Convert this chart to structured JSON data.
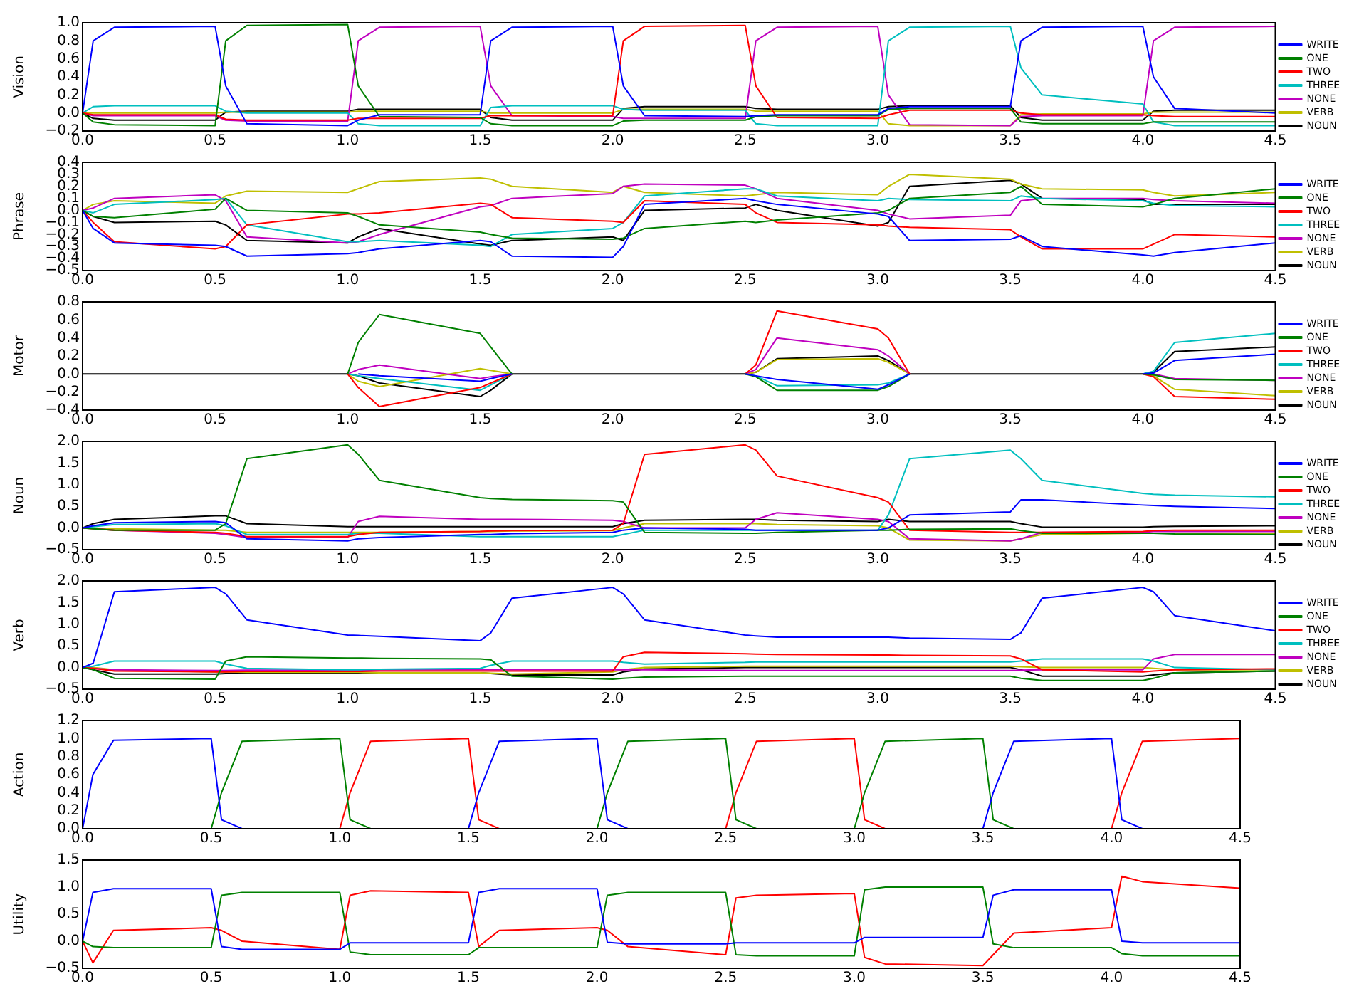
{
  "chart_data": [
    {
      "type": "line",
      "ylabel": "Vision",
      "legend": "right",
      "grid": false,
      "marker": "none",
      "xlim": [
        0,
        4.5
      ],
      "xticks": [
        {
          "value": 0,
          "label": "0.0"
        },
        {
          "value": 0.5,
          "label": "0.5"
        },
        {
          "value": 1,
          "label": "1.0"
        },
        {
          "value": 1.5,
          "label": "1.5"
        },
        {
          "value": 2,
          "label": "2.0"
        },
        {
          "value": 2.5,
          "label": "2.5"
        },
        {
          "value": 3,
          "label": "3.0"
        },
        {
          "value": 3.5,
          "label": "3.5"
        },
        {
          "value": 4,
          "label": "4.0"
        },
        {
          "value": 4.5,
          "label": "4.5"
        }
      ],
      "ylim": [
        -0.2,
        1.0
      ],
      "yticks": [
        {
          "value": -0.2,
          "label": "−0.2"
        },
        {
          "value": 0,
          "label": "0.0"
        },
        {
          "value": 0.2,
          "label": "0.2"
        },
        {
          "value": 0.4,
          "label": "0.4"
        },
        {
          "value": 0.6,
          "label": "0.6"
        },
        {
          "value": 0.8,
          "label": "0.8"
        },
        {
          "value": 1,
          "label": "1.0"
        }
      ],
      "x": [
        0,
        0.04,
        0.12,
        0.5,
        0.54,
        0.62,
        1,
        1.04,
        1.12,
        1.5,
        1.54,
        1.62,
        2,
        2.04,
        2.12,
        2.5,
        2.54,
        2.62,
        3,
        3.04,
        3.12,
        3.5,
        3.54,
        3.62,
        4,
        4.04,
        4.12,
        4.5
      ],
      "series": [
        {
          "name": "WRITE",
          "color": "#0000ff",
          "values": [
            0,
            0.8,
            0.95,
            0.96,
            0.3,
            -0.12,
            -0.14,
            -0.08,
            -0.02,
            -0.02,
            0.8,
            0.95,
            0.96,
            0.3,
            -0.03,
            -0.04,
            -0.03,
            -0.02,
            -0.02,
            0.05,
            0.07,
            0.07,
            0.8,
            0.95,
            0.96,
            0.4,
            0.05,
            0.0
          ]
        },
        {
          "name": "ONE",
          "color": "#008000",
          "values": [
            0,
            -0.1,
            -0.13,
            -0.14,
            0.8,
            0.97,
            0.98,
            0.3,
            -0.04,
            -0.05,
            -0.12,
            -0.14,
            -0.14,
            -0.09,
            -0.08,
            -0.08,
            -0.04,
            -0.03,
            -0.03,
            0.04,
            0.05,
            0.05,
            -0.1,
            -0.12,
            -0.12,
            -0.1,
            -0.1,
            -0.1
          ]
        },
        {
          "name": "TWO",
          "color": "#ff0000",
          "values": [
            0,
            -0.02,
            -0.02,
            -0.02,
            -0.07,
            -0.08,
            -0.08,
            -0.06,
            -0.06,
            -0.06,
            -0.03,
            -0.03,
            -0.03,
            0.8,
            0.96,
            0.97,
            0.3,
            -0.05,
            -0.06,
            -0.02,
            0.03,
            0.03,
            0.0,
            -0.02,
            -0.02,
            -0.03,
            -0.04,
            -0.04
          ]
        },
        {
          "name": "THREE",
          "color": "#00bfbf",
          "values": [
            0,
            0.07,
            0.08,
            0.08,
            0.02,
            0.0,
            0.0,
            -0.12,
            -0.14,
            -0.14,
            0.06,
            0.08,
            0.08,
            0.04,
            0.03,
            0.03,
            -0.12,
            -0.14,
            -0.14,
            0.8,
            0.95,
            0.96,
            0.5,
            0.2,
            0.1,
            -0.1,
            -0.14,
            -0.14
          ]
        },
        {
          "name": "NONE",
          "color": "#bf00bf",
          "values": [
            0,
            -0.03,
            -0.03,
            -0.03,
            -0.08,
            -0.09,
            -0.09,
            0.8,
            0.95,
            0.96,
            0.3,
            -0.03,
            -0.04,
            -0.06,
            -0.06,
            -0.06,
            0.8,
            0.95,
            0.96,
            0.2,
            -0.13,
            -0.14,
            -0.04,
            -0.03,
            -0.03,
            0.8,
            0.95,
            0.96
          ]
        },
        {
          "name": "VERB",
          "color": "#bfbf00",
          "values": [
            0,
            0.0,
            0.0,
            0.0,
            0.01,
            0.01,
            0.01,
            0.02,
            0.02,
            0.02,
            0.0,
            0.0,
            0.0,
            0.04,
            0.04,
            0.04,
            0.02,
            0.02,
            0.02,
            -0.12,
            -0.14,
            -0.14,
            -0.02,
            -0.01,
            -0.01,
            0.01,
            0.01,
            0.01
          ]
        },
        {
          "name": "NOUN",
          "color": "#000000",
          "values": [
            0,
            -0.06,
            -0.08,
            -0.08,
            0.01,
            0.02,
            0.02,
            0.04,
            0.04,
            0.04,
            -0.05,
            -0.08,
            -0.08,
            0.05,
            0.07,
            0.07,
            0.05,
            0.04,
            0.04,
            0.07,
            0.08,
            0.08,
            -0.05,
            -0.08,
            -0.08,
            0.02,
            0.03,
            0.03
          ]
        }
      ]
    },
    {
      "type": "line",
      "ylabel": "Phrase",
      "legend": "right",
      "grid": false,
      "marker": "none",
      "xlim": [
        0,
        4.5
      ],
      "xticks": [
        {
          "value": 0,
          "label": "0.0"
        },
        {
          "value": 0.5,
          "label": "0.5"
        },
        {
          "value": 1,
          "label": "1.0"
        },
        {
          "value": 1.5,
          "label": "1.5"
        },
        {
          "value": 2,
          "label": "2.0"
        },
        {
          "value": 2.5,
          "label": "2.5"
        },
        {
          "value": 3,
          "label": "3.0"
        },
        {
          "value": 3.5,
          "label": "3.5"
        },
        {
          "value": 4,
          "label": "4.0"
        },
        {
          "value": 4.5,
          "label": "4.5"
        }
      ],
      "ylim": [
        -0.5,
        0.4
      ],
      "yticks": [
        {
          "value": -0.5,
          "label": "−0.5"
        },
        {
          "value": -0.4,
          "label": "−0.4"
        },
        {
          "value": -0.3,
          "label": "−0.3"
        },
        {
          "value": -0.2,
          "label": "−0.2"
        },
        {
          "value": -0.1,
          "label": "−0.1"
        },
        {
          "value": 0,
          "label": "0.0"
        },
        {
          "value": 0.1,
          "label": "0.1"
        },
        {
          "value": 0.2,
          "label": "0.2"
        },
        {
          "value": 0.3,
          "label": "0.3"
        },
        {
          "value": 0.4,
          "label": "0.4"
        }
      ],
      "x": [
        0,
        0.04,
        0.12,
        0.5,
        0.54,
        0.62,
        1,
        1.04,
        1.12,
        1.5,
        1.54,
        1.62,
        2,
        2.04,
        2.12,
        2.5,
        2.54,
        2.62,
        3,
        3.04,
        3.12,
        3.5,
        3.54,
        3.62,
        4,
        4.04,
        4.12,
        4.5
      ],
      "series": [
        {
          "name": "WRITE",
          "color": "#0000ff",
          "values": [
            0,
            -0.15,
            -0.27,
            -0.29,
            -0.3,
            -0.38,
            -0.36,
            -0.35,
            -0.32,
            -0.25,
            -0.26,
            -0.38,
            -0.39,
            -0.3,
            0.05,
            0.1,
            0.08,
            0.05,
            -0.03,
            -0.05,
            -0.25,
            -0.24,
            -0.21,
            -0.3,
            -0.37,
            -0.38,
            -0.35,
            -0.27
          ]
        },
        {
          "name": "ONE",
          "color": "#008000",
          "values": [
            0,
            -0.05,
            -0.06,
            0.01,
            0.1,
            0.0,
            -0.02,
            -0.05,
            -0.12,
            -0.18,
            -0.2,
            -0.23,
            -0.24,
            -0.23,
            -0.15,
            -0.09,
            -0.1,
            -0.08,
            -0.02,
            0.0,
            0.1,
            0.15,
            0.2,
            0.05,
            0.03,
            0.05,
            0.1,
            0.18
          ]
        },
        {
          "name": "TWO",
          "color": "#ff0000",
          "values": [
            0,
            -0.1,
            -0.26,
            -0.32,
            -0.3,
            -0.12,
            -0.03,
            -0.03,
            -0.02,
            0.06,
            0.05,
            -0.06,
            -0.09,
            -0.1,
            0.08,
            0.05,
            -0.02,
            -0.1,
            -0.12,
            -0.13,
            -0.14,
            -0.16,
            -0.22,
            -0.32,
            -0.32,
            -0.28,
            -0.2,
            -0.22
          ]
        },
        {
          "name": "THREE",
          "color": "#00bfbf",
          "values": [
            0,
            -0.02,
            0.05,
            0.09,
            0.1,
            -0.12,
            -0.26,
            -0.26,
            -0.25,
            -0.29,
            -0.3,
            -0.2,
            -0.15,
            -0.1,
            0.12,
            0.18,
            0.18,
            0.12,
            0.08,
            0.1,
            0.09,
            0.08,
            0.12,
            0.1,
            0.08,
            0.06,
            0.04,
            0.03
          ]
        },
        {
          "name": "NONE",
          "color": "#bf00bf",
          "values": [
            0,
            0.02,
            0.1,
            0.13,
            0.08,
            -0.22,
            -0.27,
            -0.26,
            -0.2,
            0.03,
            0.04,
            0.1,
            0.14,
            0.2,
            0.22,
            0.21,
            0.18,
            0.1,
            0.0,
            -0.03,
            -0.07,
            -0.04,
            0.08,
            0.1,
            0.1,
            0.09,
            0.08,
            0.06
          ]
        },
        {
          "name": "VERB",
          "color": "#bfbf00",
          "values": [
            0,
            0.05,
            0.08,
            0.06,
            0.12,
            0.16,
            0.15,
            0.18,
            0.24,
            0.27,
            0.26,
            0.2,
            0.15,
            0.2,
            0.15,
            0.12,
            0.13,
            0.15,
            0.13,
            0.2,
            0.3,
            0.26,
            0.22,
            0.18,
            0.17,
            0.15,
            0.12,
            0.15
          ]
        },
        {
          "name": "NOUN",
          "color": "#000000",
          "values": [
            0,
            -0.05,
            -0.1,
            -0.09,
            -0.12,
            -0.25,
            -0.27,
            -0.22,
            -0.15,
            -0.28,
            -0.29,
            -0.25,
            -0.22,
            -0.25,
            0.0,
            0.02,
            0.05,
            0.0,
            -0.13,
            -0.1,
            0.2,
            0.25,
            0.22,
            0.1,
            0.09,
            0.05,
            0.05,
            0.05
          ]
        }
      ]
    },
    {
      "type": "line",
      "ylabel": "Motor",
      "legend": "right",
      "grid": false,
      "marker": "none",
      "xlim": [
        0,
        4.5
      ],
      "xticks": [
        {
          "value": 0,
          "label": "0.0"
        },
        {
          "value": 0.5,
          "label": "0.5"
        },
        {
          "value": 1,
          "label": "1.0"
        },
        {
          "value": 1.5,
          "label": "1.5"
        },
        {
          "value": 2,
          "label": "2.0"
        },
        {
          "value": 2.5,
          "label": "2.5"
        },
        {
          "value": 3,
          "label": "3.0"
        },
        {
          "value": 3.5,
          "label": "3.5"
        },
        {
          "value": 4,
          "label": "4.0"
        },
        {
          "value": 4.5,
          "label": "4.5"
        }
      ],
      "ylim": [
        -0.4,
        0.8
      ],
      "yticks": [
        {
          "value": -0.4,
          "label": "−0.4"
        },
        {
          "value": -0.2,
          "label": "−0.2"
        },
        {
          "value": 0,
          "label": "0.0"
        },
        {
          "value": 0.2,
          "label": "0.2"
        },
        {
          "value": 0.4,
          "label": "0.4"
        },
        {
          "value": 0.6,
          "label": "0.6"
        },
        {
          "value": 0.8,
          "label": "0.8"
        }
      ],
      "x": [
        0,
        0.04,
        0.12,
        0.5,
        0.54,
        0.62,
        1,
        1.04,
        1.12,
        1.5,
        1.54,
        1.62,
        2,
        2.04,
        2.12,
        2.5,
        2.54,
        2.62,
        3,
        3.04,
        3.12,
        3.5,
        3.54,
        3.62,
        4,
        4.04,
        4.12,
        4.5
      ],
      "series": [
        {
          "name": "WRITE",
          "color": "#0000ff",
          "values": [
            null,
            null,
            null,
            null,
            null,
            null,
            null,
            0,
            -0.02,
            -0.08,
            -0.05,
            0,
            null,
            null,
            null,
            0,
            -0.02,
            -0.06,
            -0.17,
            -0.12,
            0,
            null,
            null,
            null,
            0,
            0.01,
            0.15,
            0.22
          ]
        },
        {
          "name": "ONE",
          "color": "#008000",
          "values": [
            null,
            null,
            null,
            null,
            null,
            null,
            0,
            0.35,
            0.66,
            0.45,
            0.3,
            0,
            null,
            null,
            null,
            0,
            -0.03,
            -0.18,
            -0.18,
            -0.14,
            0,
            null,
            null,
            null,
            0,
            -0.01,
            -0.06,
            -0.07
          ]
        },
        {
          "name": "TWO",
          "color": "#ff0000",
          "values": [
            null,
            null,
            null,
            null,
            null,
            null,
            0,
            -0.15,
            -0.36,
            -0.15,
            -0.1,
            0,
            null,
            null,
            null,
            0,
            0.1,
            0.7,
            0.5,
            0.4,
            0,
            null,
            null,
            null,
            0,
            -0.03,
            -0.25,
            -0.28
          ]
        },
        {
          "name": "THREE",
          "color": "#00bfbf",
          "values": [
            null,
            null,
            null,
            null,
            null,
            null,
            0,
            -0.02,
            -0.05,
            -0.18,
            -0.12,
            0,
            null,
            null,
            null,
            0,
            -0.02,
            -0.13,
            -0.12,
            -0.1,
            0,
            null,
            null,
            null,
            0,
            0.03,
            0.35,
            0.45
          ]
        },
        {
          "name": "NONE",
          "color": "#bf00bf",
          "values": [
            null,
            null,
            null,
            null,
            null,
            null,
            0,
            0.05,
            0.1,
            -0.05,
            -0.03,
            0,
            null,
            null,
            null,
            0,
            0.05,
            0.4,
            0.27,
            0.2,
            0,
            null,
            null,
            null,
            null,
            0,
            -0.05,
            -0.07
          ]
        },
        {
          "name": "VERB",
          "color": "#bfbf00",
          "values": [
            null,
            null,
            null,
            null,
            null,
            null,
            0,
            -0.08,
            -0.14,
            0.06,
            0.04,
            0,
            null,
            null,
            null,
            0,
            0.02,
            0.16,
            0.17,
            0.13,
            0,
            null,
            null,
            null,
            0,
            -0.02,
            -0.17,
            -0.24
          ]
        },
        {
          "name": "NOUN",
          "color": "#000000",
          "values": [
            0,
            0,
            0,
            0,
            0,
            0,
            0,
            -0.02,
            -0.1,
            -0.25,
            -0.18,
            0,
            0,
            0,
            0,
            0,
            0.02,
            0.17,
            0.2,
            0.15,
            0,
            0,
            0,
            0,
            0,
            0.02,
            0.25,
            0.3
          ]
        }
      ]
    },
    {
      "type": "line",
      "ylabel": "Noun",
      "legend": "right",
      "grid": false,
      "marker": "none",
      "xlim": [
        0,
        4.5
      ],
      "xticks": [
        {
          "value": 0,
          "label": "0.0"
        },
        {
          "value": 0.5,
          "label": "0.5"
        },
        {
          "value": 1,
          "label": "1.0"
        },
        {
          "value": 1.5,
          "label": "1.5"
        },
        {
          "value": 2,
          "label": "2.0"
        },
        {
          "value": 2.5,
          "label": "2.5"
        },
        {
          "value": 3,
          "label": "3.0"
        },
        {
          "value": 3.5,
          "label": "3.5"
        },
        {
          "value": 4,
          "label": "4.0"
        },
        {
          "value": 4.5,
          "label": "4.5"
        }
      ],
      "ylim": [
        -0.5,
        2.0
      ],
      "yticks": [
        {
          "value": -0.5,
          "label": "−0.5"
        },
        {
          "value": 0,
          "label": "0.0"
        },
        {
          "value": 0.5,
          "label": "0.5"
        },
        {
          "value": 1,
          "label": "1.0"
        },
        {
          "value": 1.5,
          "label": "1.5"
        },
        {
          "value": 2,
          "label": "2.0"
        }
      ],
      "x": [
        0,
        0.04,
        0.12,
        0.5,
        0.54,
        0.62,
        1,
        1.04,
        1.12,
        1.5,
        1.54,
        1.62,
        2,
        2.04,
        2.12,
        2.5,
        2.54,
        2.62,
        3,
        3.04,
        3.12,
        3.5,
        3.54,
        3.62,
        4,
        4.04,
        4.12,
        4.5
      ],
      "series": [
        {
          "name": "WRITE",
          "color": "#0000ff",
          "values": [
            0,
            0.05,
            0.12,
            0.15,
            0.12,
            -0.25,
            -0.3,
            -0.25,
            -0.22,
            -0.15,
            -0.15,
            -0.13,
            -0.1,
            -0.05,
            0.0,
            -0.03,
            -0.05,
            -0.05,
            -0.05,
            0.0,
            0.3,
            0.37,
            0.65,
            0.65,
            0.53,
            0.52,
            0.5,
            0.45
          ]
        },
        {
          "name": "ONE",
          "color": "#008000",
          "values": [
            0,
            -0.02,
            -0.05,
            -0.05,
            0.1,
            1.6,
            1.92,
            1.7,
            1.1,
            0.7,
            0.68,
            0.66,
            0.63,
            0.6,
            -0.1,
            -0.12,
            -0.12,
            -0.1,
            -0.05,
            -0.05,
            -0.03,
            -0.02,
            -0.06,
            -0.12,
            -0.12,
            -0.12,
            -0.14,
            -0.15
          ]
        },
        {
          "name": "TWO",
          "color": "#ff0000",
          "values": [
            0,
            -0.02,
            -0.05,
            -0.1,
            -0.12,
            -0.2,
            -0.2,
            -0.15,
            -0.1,
            -0.08,
            -0.07,
            -0.06,
            -0.05,
            0.1,
            1.7,
            1.92,
            1.8,
            1.2,
            0.7,
            0.6,
            -0.05,
            -0.1,
            -0.1,
            -0.1,
            -0.08,
            -0.06,
            -0.05,
            -0.05
          ]
        },
        {
          "name": "THREE",
          "color": "#00bfbf",
          "values": [
            0,
            0.03,
            0.08,
            0.1,
            0.05,
            -0.15,
            -0.15,
            -0.12,
            -0.12,
            -0.2,
            -0.2,
            -0.2,
            -0.2,
            -0.15,
            -0.05,
            -0.05,
            -0.05,
            -0.05,
            -0.05,
            0.3,
            1.6,
            1.8,
            1.6,
            1.1,
            0.8,
            0.78,
            0.76,
            0.72
          ]
        },
        {
          "name": "NONE",
          "color": "#bf00bf",
          "values": [
            0,
            -0.01,
            -0.05,
            -0.12,
            -0.15,
            -0.22,
            -0.22,
            0.15,
            0.27,
            0.2,
            0.2,
            0.2,
            0.18,
            0.15,
            0.0,
            0.0,
            0.2,
            0.35,
            0.2,
            0.15,
            -0.25,
            -0.3,
            -0.25,
            -0.1,
            -0.1,
            -0.08,
            -0.08,
            -0.08
          ]
        },
        {
          "name": "VERB",
          "color": "#bfbf00",
          "values": [
            0,
            0.0,
            -0.02,
            -0.05,
            -0.05,
            -0.1,
            -0.1,
            -0.1,
            -0.1,
            -0.08,
            -0.08,
            -0.07,
            -0.06,
            0.0,
            0.1,
            0.1,
            0.1,
            0.08,
            0.05,
            0.0,
            -0.28,
            -0.3,
            -0.25,
            -0.15,
            -0.12,
            -0.12,
            -0.12,
            -0.12
          ]
        },
        {
          "name": "NOUN",
          "color": "#000000",
          "values": [
            0,
            0.1,
            0.2,
            0.28,
            0.28,
            0.1,
            0.03,
            0.03,
            0.03,
            0.03,
            0.03,
            0.03,
            0.03,
            0.1,
            0.18,
            0.2,
            0.2,
            0.18,
            0.15,
            0.2,
            0.15,
            0.15,
            0.1,
            0.02,
            0.02,
            0.03,
            0.04,
            0.05
          ]
        }
      ]
    },
    {
      "type": "line",
      "ylabel": "Verb",
      "legend": "right",
      "grid": false,
      "marker": "none",
      "xlim": [
        0,
        4.5
      ],
      "xticks": [
        {
          "value": 0,
          "label": "0.0"
        },
        {
          "value": 0.5,
          "label": "0.5"
        },
        {
          "value": 1,
          "label": "1.0"
        },
        {
          "value": 1.5,
          "label": "1.5"
        },
        {
          "value": 2,
          "label": "2.0"
        },
        {
          "value": 2.5,
          "label": "2.5"
        },
        {
          "value": 3,
          "label": "3.0"
        },
        {
          "value": 3.5,
          "label": "3.5"
        },
        {
          "value": 4,
          "label": "4.0"
        },
        {
          "value": 4.5,
          "label": "4.5"
        }
      ],
      "ylim": [
        -0.5,
        2.0
      ],
      "yticks": [
        {
          "value": -0.5,
          "label": "−0.5"
        },
        {
          "value": 0,
          "label": "0.0"
        },
        {
          "value": 0.5,
          "label": "0.5"
        },
        {
          "value": 1,
          "label": "1.0"
        },
        {
          "value": 1.5,
          "label": "1.5"
        },
        {
          "value": 2,
          "label": "2.0"
        }
      ],
      "x": [
        0,
        0.04,
        0.12,
        0.5,
        0.54,
        0.62,
        1,
        1.04,
        1.12,
        1.5,
        1.54,
        1.62,
        2,
        2.04,
        2.12,
        2.5,
        2.54,
        2.62,
        3,
        3.04,
        3.12,
        3.5,
        3.54,
        3.62,
        4,
        4.04,
        4.12,
        4.5
      ],
      "series": [
        {
          "name": "WRITE",
          "color": "#0000ff",
          "values": [
            0,
            0.1,
            1.75,
            1.85,
            1.7,
            1.1,
            0.75,
            0.74,
            0.72,
            0.62,
            0.8,
            1.6,
            1.85,
            1.7,
            1.1,
            0.75,
            0.73,
            0.7,
            0.7,
            0.7,
            0.68,
            0.65,
            0.8,
            1.6,
            1.85,
            1.75,
            1.2,
            0.85
          ]
        },
        {
          "name": "ONE",
          "color": "#008000",
          "values": [
            0,
            -0.05,
            -0.25,
            -0.27,
            0.15,
            0.25,
            0.22,
            0.22,
            0.21,
            0.2,
            0.18,
            -0.2,
            -0.27,
            -0.25,
            -0.22,
            -0.2,
            -0.2,
            -0.2,
            -0.2,
            -0.2,
            -0.2,
            -0.2,
            -0.25,
            -0.3,
            -0.3,
            -0.25,
            -0.12,
            -0.08
          ]
        },
        {
          "name": "TWO",
          "color": "#ff0000",
          "values": [
            0,
            -0.02,
            -0.08,
            -0.1,
            -0.1,
            -0.09,
            -0.09,
            -0.09,
            -0.08,
            -0.08,
            -0.08,
            -0.08,
            -0.08,
            0.25,
            0.35,
            0.32,
            0.31,
            0.3,
            0.29,
            0.29,
            0.28,
            0.27,
            0.2,
            -0.05,
            -0.1,
            -0.08,
            -0.05,
            -0.03
          ]
        },
        {
          "name": "THREE",
          "color": "#00bfbf",
          "values": [
            0,
            0.03,
            0.15,
            0.15,
            0.08,
            -0.02,
            -0.05,
            -0.05,
            -0.04,
            -0.02,
            0.05,
            0.15,
            0.15,
            0.12,
            0.08,
            0.12,
            0.13,
            0.13,
            0.13,
            0.13,
            0.13,
            0.13,
            0.15,
            0.2,
            0.2,
            0.15,
            0.0,
            -0.05
          ]
        },
        {
          "name": "NONE",
          "color": "#bf00bf",
          "values": [
            0,
            -0.02,
            -0.05,
            -0.07,
            -0.07,
            -0.06,
            -0.06,
            -0.06,
            -0.05,
            -0.05,
            -0.05,
            -0.05,
            -0.05,
            -0.05,
            -0.05,
            -0.07,
            -0.07,
            -0.07,
            -0.07,
            -0.07,
            -0.07,
            -0.07,
            -0.06,
            -0.05,
            -0.05,
            0.2,
            0.3,
            0.3
          ]
        },
        {
          "name": "VERB",
          "color": "#bfbf00",
          "values": [
            0,
            0.0,
            -0.05,
            -0.1,
            -0.1,
            -0.11,
            -0.11,
            -0.11,
            -0.12,
            -0.12,
            -0.13,
            -0.15,
            -0.1,
            -0.05,
            0.0,
            0.03,
            0.03,
            0.03,
            0.03,
            0.03,
            0.03,
            0.03,
            0.02,
            0.0,
            0.0,
            -0.02,
            -0.05,
            -0.05
          ]
        },
        {
          "name": "NOUN",
          "color": "#000000",
          "values": [
            0,
            -0.05,
            -0.15,
            -0.15,
            -0.14,
            -0.13,
            -0.13,
            -0.13,
            -0.12,
            -0.12,
            -0.14,
            -0.17,
            -0.17,
            -0.1,
            -0.03,
            0.0,
            0.0,
            0.0,
            0.0,
            0.0,
            0.0,
            0.0,
            -0.05,
            -0.2,
            -0.2,
            -0.17,
            -0.12,
            -0.08
          ]
        }
      ]
    },
    {
      "type": "line",
      "ylabel": "Action",
      "grid": false,
      "marker": "none",
      "xlim": [
        0,
        4.5
      ],
      "xticks": [
        {
          "value": 0,
          "label": "0.0"
        },
        {
          "value": 0.5,
          "label": "0.5"
        },
        {
          "value": 1,
          "label": "1.0"
        },
        {
          "value": 1.5,
          "label": "1.5"
        },
        {
          "value": 2,
          "label": "2.0"
        },
        {
          "value": 2.5,
          "label": "2.5"
        },
        {
          "value": 3,
          "label": "3.0"
        },
        {
          "value": 3.5,
          "label": "3.5"
        },
        {
          "value": 4,
          "label": "4.0"
        },
        {
          "value": 4.5,
          "label": "4.5"
        }
      ],
      "ylim": [
        0,
        1.2
      ],
      "yticks": [
        {
          "value": 0,
          "label": "0.0"
        },
        {
          "value": 0.2,
          "label": "0.2"
        },
        {
          "value": 0.4,
          "label": "0.4"
        },
        {
          "value": 0.6,
          "label": "0.6"
        },
        {
          "value": 0.8,
          "label": "0.8"
        },
        {
          "value": 1,
          "label": "1.0"
        },
        {
          "value": 1.2,
          "label": "1.2"
        }
      ],
      "x": [
        0,
        0.04,
        0.12,
        0.5,
        0.54,
        0.62,
        1,
        1.04,
        1.12,
        1.5,
        1.54,
        1.62,
        2,
        2.04,
        2.12,
        2.5,
        2.54,
        2.62,
        3,
        3.04,
        3.12,
        3.5,
        3.54,
        3.62,
        4,
        4.04,
        4.12,
        4.5
      ],
      "series": [
        {
          "color": "#0000ff",
          "values": [
            0,
            0.6,
            0.98,
            1.0,
            0.1,
            0,
            null,
            null,
            null,
            0,
            0.4,
            0.97,
            1.0,
            0.1,
            0,
            null,
            null,
            null,
            null,
            null,
            null,
            0,
            0.4,
            0.97,
            1.0,
            0.1,
            0,
            null
          ]
        },
        {
          "color": "#008000",
          "values": [
            null,
            null,
            null,
            0,
            0.4,
            0.97,
            1.0,
            0.1,
            0,
            null,
            null,
            null,
            0,
            0.4,
            0.97,
            1.0,
            0.1,
            0,
            0,
            0.4,
            0.97,
            1.0,
            0.1,
            0,
            null,
            null,
            null,
            null
          ]
        },
        {
          "color": "#ff0000",
          "values": [
            null,
            null,
            null,
            null,
            null,
            0,
            0,
            0.4,
            0.97,
            1.0,
            0.1,
            0,
            0,
            null,
            0,
            0,
            0.4,
            0.97,
            1.0,
            0.1,
            0,
            0,
            null,
            0,
            0,
            0.4,
            0.97,
            1.0
          ]
        }
      ]
    },
    {
      "type": "line",
      "ylabel": "Utility",
      "grid": false,
      "marker": "none",
      "xlim": [
        0,
        4.5
      ],
      "xticks": [
        {
          "value": 0,
          "label": "0.0"
        },
        {
          "value": 0.5,
          "label": "0.5"
        },
        {
          "value": 1,
          "label": "1.0"
        },
        {
          "value": 1.5,
          "label": "1.5"
        },
        {
          "value": 2,
          "label": "2.0"
        },
        {
          "value": 2.5,
          "label": "2.5"
        },
        {
          "value": 3,
          "label": "3.0"
        },
        {
          "value": 3.5,
          "label": "3.5"
        },
        {
          "value": 4,
          "label": "4.0"
        },
        {
          "value": 4.5,
          "label": "4.5"
        }
      ],
      "ylim": [
        -0.5,
        1.5
      ],
      "yticks": [
        {
          "value": -0.5,
          "label": "−0.5"
        },
        {
          "value": 0,
          "label": "0.0"
        },
        {
          "value": 0.5,
          "label": "0.5"
        },
        {
          "value": 1,
          "label": "1.0"
        },
        {
          "value": 1.5,
          "label": "1.5"
        }
      ],
      "x": [
        0,
        0.04,
        0.12,
        0.5,
        0.54,
        0.62,
        1,
        1.04,
        1.12,
        1.5,
        1.54,
        1.62,
        2,
        2.04,
        2.12,
        2.5,
        2.54,
        2.62,
        3,
        3.04,
        3.12,
        3.5,
        3.54,
        3.62,
        4,
        4.04,
        4.12,
        4.5
      ],
      "series": [
        {
          "color": "#0000ff",
          "values": [
            0,
            0.9,
            0.97,
            0.97,
            -0.1,
            -0.15,
            -0.15,
            -0.03,
            -0.03,
            -0.03,
            0.9,
            0.97,
            0.97,
            -0.02,
            -0.05,
            -0.05,
            -0.03,
            -0.03,
            -0.03,
            0.07,
            0.07,
            0.07,
            0.85,
            0.95,
            0.95,
            0.0,
            -0.03,
            -0.03
          ]
        },
        {
          "color": "#008000",
          "values": [
            0,
            -0.1,
            -0.12,
            -0.12,
            0.85,
            0.9,
            0.9,
            -0.2,
            -0.25,
            -0.25,
            -0.12,
            -0.12,
            -0.12,
            0.85,
            0.9,
            0.9,
            -0.25,
            -0.27,
            -0.27,
            0.95,
            1.0,
            1.0,
            -0.05,
            -0.12,
            -0.12,
            -0.23,
            -0.27,
            -0.27
          ]
        },
        {
          "color": "#ff0000",
          "values": [
            0,
            -0.4,
            0.2,
            0.25,
            0.2,
            0.0,
            -0.15,
            0.85,
            0.93,
            0.9,
            -0.1,
            0.2,
            0.25,
            0.2,
            -0.1,
            -0.25,
            0.8,
            0.85,
            0.88,
            -0.3,
            -0.42,
            -0.45,
            -0.25,
            0.15,
            0.25,
            1.2,
            1.1,
            0.98
          ]
        }
      ]
    }
  ]
}
